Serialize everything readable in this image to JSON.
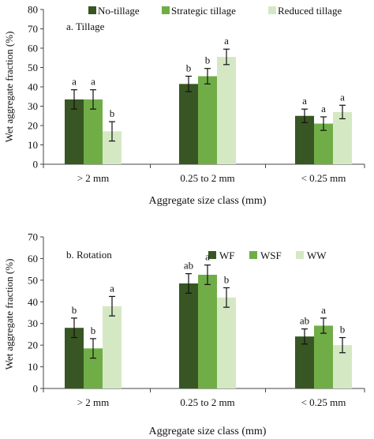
{
  "chart_data": [
    {
      "type": "bar",
      "panel_label": "a. Tillage",
      "ylabel": "Wet aggregate fraction (%)",
      "xlabel": "Aggregate size class (mm)",
      "ylim": [
        0,
        80
      ],
      "yticks": [
        "0",
        "10",
        "20",
        "30",
        "40",
        "50",
        "60",
        "70",
        "80"
      ],
      "categories": [
        "> 2 mm",
        "0.25 to 2 mm",
        "< 0.25 mm"
      ],
      "legend_position": "top",
      "series": [
        {
          "name": "No-tillage",
          "color": "#375623",
          "values": [
            33.5,
            41.5,
            25
          ],
          "errors": [
            5,
            4,
            3.5
          ],
          "letters": [
            "a",
            "b",
            "a"
          ]
        },
        {
          "name": "Strategic tillage",
          "color": "#70ad47",
          "values": [
            33.5,
            45.5,
            21
          ],
          "errors": [
            5,
            4,
            3.5
          ],
          "letters": [
            "a",
            "b",
            "a"
          ]
        },
        {
          "name": "Reduced tillage",
          "color": "#d5e8c4",
          "values": [
            17,
            55.5,
            27
          ],
          "errors": [
            5,
            4,
            3.5
          ],
          "letters": [
            "b",
            "a",
            "a"
          ]
        }
      ]
    },
    {
      "type": "bar",
      "panel_label": "b. Rotation",
      "ylabel": "Wet aggregate fraction (%)",
      "xlabel": "Aggregate size class (mm)",
      "ylim": [
        0,
        70
      ],
      "yticks": [
        "0",
        "10",
        "20",
        "30",
        "40",
        "50",
        "60",
        "70"
      ],
      "categories": [
        "> 2 mm",
        "0.25 to 2 mm",
        "< 0.25 mm"
      ],
      "legend_position": "top-right",
      "series": [
        {
          "name": "WF",
          "color": "#375623",
          "values": [
            28,
            48.5,
            24
          ],
          "errors": [
            4.5,
            4.5,
            3.5
          ],
          "letters": [
            "b",
            "ab",
            "ab"
          ]
        },
        {
          "name": "WSF",
          "color": "#70ad47",
          "values": [
            18.5,
            52.5,
            29
          ],
          "errors": [
            4.5,
            4.5,
            3.5
          ],
          "letters": [
            "b",
            "a",
            "a"
          ]
        },
        {
          "name": "WW",
          "color": "#d5e8c4",
          "values": [
            38,
            42,
            20
          ],
          "errors": [
            4.5,
            4.5,
            3.5
          ],
          "letters": [
            "a",
            "b",
            "b"
          ]
        }
      ]
    }
  ]
}
